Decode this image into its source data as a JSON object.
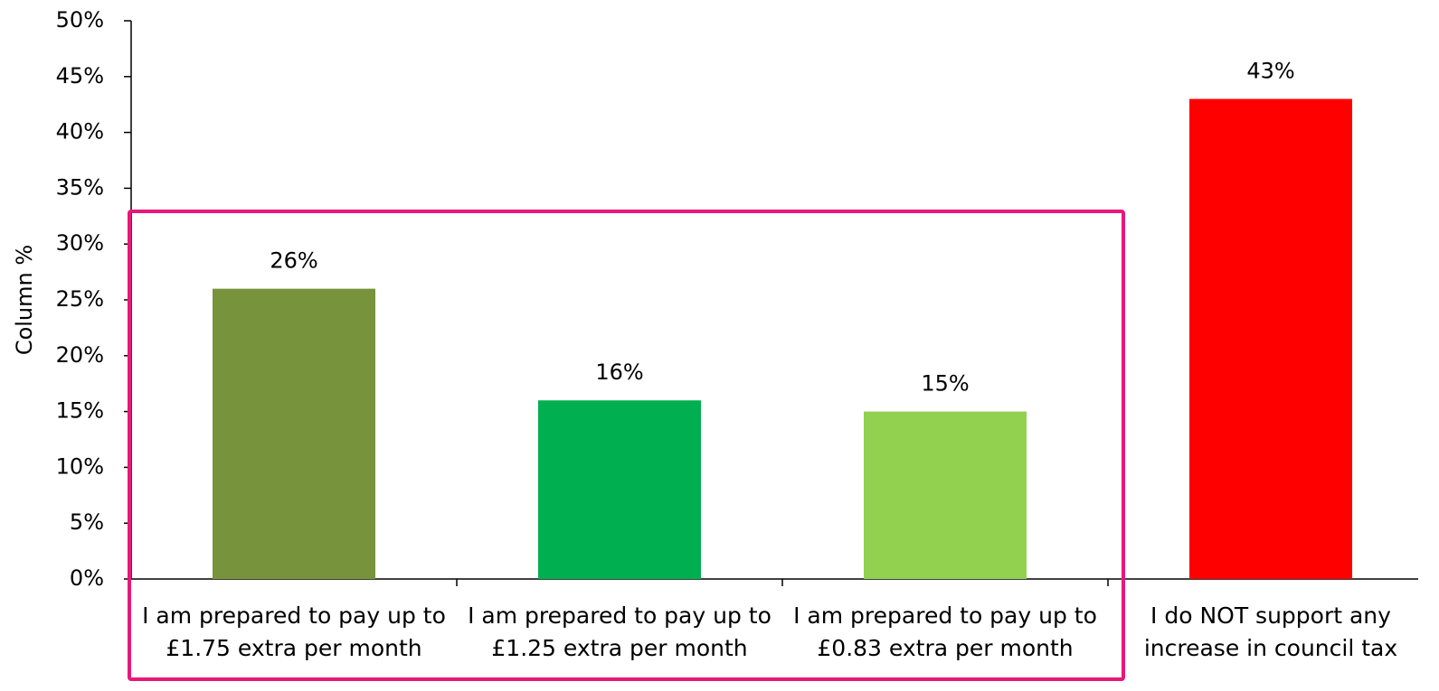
{
  "chart_data": {
    "type": "bar",
    "y_label": "Column %",
    "categories": [
      "I am prepared to pay up to £1.75 extra per month",
      "I am prepared to pay up to £1.25 extra per month",
      "I am prepared to pay up to £0.83 extra per month",
      "I do NOT support any increase in council tax"
    ],
    "values": [
      26,
      16,
      15,
      43
    ],
    "value_labels": [
      "26%",
      "16%",
      "15%",
      "43%"
    ],
    "colors": [
      "#77933c",
      "#00b050",
      "#92d050",
      "#ff0000"
    ],
    "ylim": [
      0,
      50
    ],
    "yticks": [
      {
        "value": 0,
        "label": "0%"
      },
      {
        "value": 5,
        "label": "5%"
      },
      {
        "value": 10,
        "label": "10%"
      },
      {
        "value": 15,
        "label": "15%"
      },
      {
        "value": 20,
        "label": "20%"
      },
      {
        "value": 25,
        "label": "25%"
      },
      {
        "value": 30,
        "label": "30%"
      },
      {
        "value": 35,
        "label": "35%"
      },
      {
        "value": 40,
        "label": "40%"
      },
      {
        "value": 45,
        "label": "45%"
      },
      {
        "value": 50,
        "label": "50%"
      }
    ]
  }
}
